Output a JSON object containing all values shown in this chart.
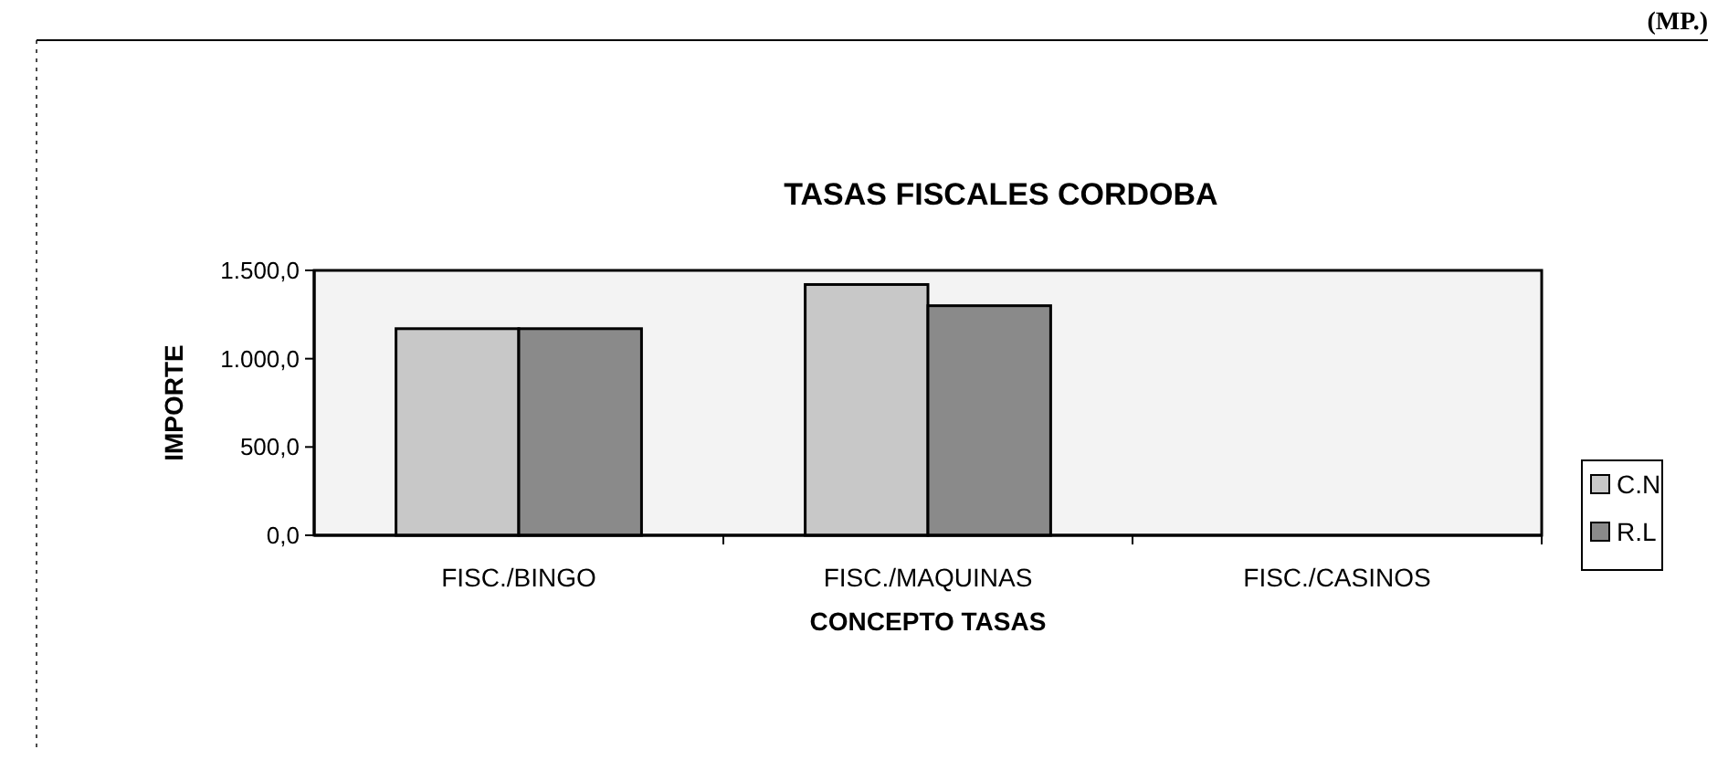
{
  "chart_data": {
    "type": "bar",
    "title": "TASAS FISCALES CORDOBA",
    "xlabel": "CONCEPTO TASAS",
    "ylabel": "IMPORTE",
    "annotations": [
      "(MP.)"
    ],
    "categories": [
      "FISC./BINGO",
      "FISC./MAQUINAS",
      "FISC./CASINOS"
    ],
    "series": [
      {
        "name": "C.N",
        "color": "#c8c8c8",
        "values": [
          1170,
          1420,
          0
        ]
      },
      {
        "name": "R.L",
        "color": "#8a8a8a",
        "values": [
          1170,
          1300,
          0
        ]
      }
    ],
    "ylim": [
      0,
      1500
    ],
    "yticks": [
      {
        "value": 0,
        "label": "0,0"
      },
      {
        "value": 500,
        "label": "500,0"
      },
      {
        "value": 1000,
        "label": "1.000,0"
      },
      {
        "value": 1500,
        "label": "1.500,0"
      }
    ],
    "grid": false,
    "legend": "right"
  }
}
